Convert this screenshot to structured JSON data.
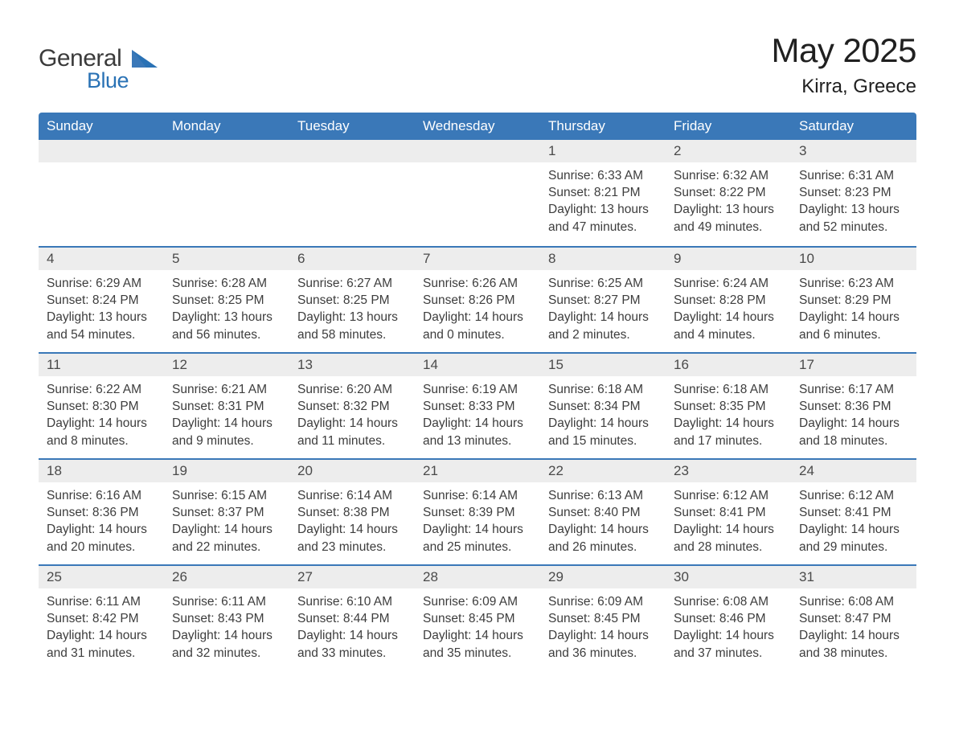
{
  "brand": {
    "line1": "General",
    "line2": "Blue"
  },
  "colors": {
    "header_bg": "#3a78b8",
    "daynum_bg": "#ededed",
    "divider": "#3a78b8",
    "text_dark": "#3d3d3d",
    "brand_gray": "#3b3b3b",
    "brand_blue": "#2a72b5",
    "white": "#ffffff"
  },
  "title": "May 2025",
  "location": "Kirra, Greece",
  "weekdays": [
    "Sunday",
    "Monday",
    "Tuesday",
    "Wednesday",
    "Thursday",
    "Friday",
    "Saturday"
  ],
  "weeks": [
    [
      {
        "blank": true
      },
      {
        "blank": true
      },
      {
        "blank": true
      },
      {
        "blank": true
      },
      {
        "day": "1",
        "sunrise": "6:33 AM",
        "sunset": "8:21 PM",
        "daylight": "13 hours and 47 minutes."
      },
      {
        "day": "2",
        "sunrise": "6:32 AM",
        "sunset": "8:22 PM",
        "daylight": "13 hours and 49 minutes."
      },
      {
        "day": "3",
        "sunrise": "6:31 AM",
        "sunset": "8:23 PM",
        "daylight": "13 hours and 52 minutes."
      }
    ],
    [
      {
        "day": "4",
        "sunrise": "6:29 AM",
        "sunset": "8:24 PM",
        "daylight": "13 hours and 54 minutes."
      },
      {
        "day": "5",
        "sunrise": "6:28 AM",
        "sunset": "8:25 PM",
        "daylight": "13 hours and 56 minutes."
      },
      {
        "day": "6",
        "sunrise": "6:27 AM",
        "sunset": "8:25 PM",
        "daylight": "13 hours and 58 minutes."
      },
      {
        "day": "7",
        "sunrise": "6:26 AM",
        "sunset": "8:26 PM",
        "daylight": "14 hours and 0 minutes."
      },
      {
        "day": "8",
        "sunrise": "6:25 AM",
        "sunset": "8:27 PM",
        "daylight": "14 hours and 2 minutes."
      },
      {
        "day": "9",
        "sunrise": "6:24 AM",
        "sunset": "8:28 PM",
        "daylight": "14 hours and 4 minutes."
      },
      {
        "day": "10",
        "sunrise": "6:23 AM",
        "sunset": "8:29 PM",
        "daylight": "14 hours and 6 minutes."
      }
    ],
    [
      {
        "day": "11",
        "sunrise": "6:22 AM",
        "sunset": "8:30 PM",
        "daylight": "14 hours and 8 minutes."
      },
      {
        "day": "12",
        "sunrise": "6:21 AM",
        "sunset": "8:31 PM",
        "daylight": "14 hours and 9 minutes."
      },
      {
        "day": "13",
        "sunrise": "6:20 AM",
        "sunset": "8:32 PM",
        "daylight": "14 hours and 11 minutes."
      },
      {
        "day": "14",
        "sunrise": "6:19 AM",
        "sunset": "8:33 PM",
        "daylight": "14 hours and 13 minutes."
      },
      {
        "day": "15",
        "sunrise": "6:18 AM",
        "sunset": "8:34 PM",
        "daylight": "14 hours and 15 minutes."
      },
      {
        "day": "16",
        "sunrise": "6:18 AM",
        "sunset": "8:35 PM",
        "daylight": "14 hours and 17 minutes."
      },
      {
        "day": "17",
        "sunrise": "6:17 AM",
        "sunset": "8:36 PM",
        "daylight": "14 hours and 18 minutes."
      }
    ],
    [
      {
        "day": "18",
        "sunrise": "6:16 AM",
        "sunset": "8:36 PM",
        "daylight": "14 hours and 20 minutes."
      },
      {
        "day": "19",
        "sunrise": "6:15 AM",
        "sunset": "8:37 PM",
        "daylight": "14 hours and 22 minutes."
      },
      {
        "day": "20",
        "sunrise": "6:14 AM",
        "sunset": "8:38 PM",
        "daylight": "14 hours and 23 minutes."
      },
      {
        "day": "21",
        "sunrise": "6:14 AM",
        "sunset": "8:39 PM",
        "daylight": "14 hours and 25 minutes."
      },
      {
        "day": "22",
        "sunrise": "6:13 AM",
        "sunset": "8:40 PM",
        "daylight": "14 hours and 26 minutes."
      },
      {
        "day": "23",
        "sunrise": "6:12 AM",
        "sunset": "8:41 PM",
        "daylight": "14 hours and 28 minutes."
      },
      {
        "day": "24",
        "sunrise": "6:12 AM",
        "sunset": "8:41 PM",
        "daylight": "14 hours and 29 minutes."
      }
    ],
    [
      {
        "day": "25",
        "sunrise": "6:11 AM",
        "sunset": "8:42 PM",
        "daylight": "14 hours and 31 minutes."
      },
      {
        "day": "26",
        "sunrise": "6:11 AM",
        "sunset": "8:43 PM",
        "daylight": "14 hours and 32 minutes."
      },
      {
        "day": "27",
        "sunrise": "6:10 AM",
        "sunset": "8:44 PM",
        "daylight": "14 hours and 33 minutes."
      },
      {
        "day": "28",
        "sunrise": "6:09 AM",
        "sunset": "8:45 PM",
        "daylight": "14 hours and 35 minutes."
      },
      {
        "day": "29",
        "sunrise": "6:09 AM",
        "sunset": "8:45 PM",
        "daylight": "14 hours and 36 minutes."
      },
      {
        "day": "30",
        "sunrise": "6:08 AM",
        "sunset": "8:46 PM",
        "daylight": "14 hours and 37 minutes."
      },
      {
        "day": "31",
        "sunrise": "6:08 AM",
        "sunset": "8:47 PM",
        "daylight": "14 hours and 38 minutes."
      }
    ]
  ],
  "labels": {
    "sunrise": "Sunrise: ",
    "sunset": "Sunset: ",
    "daylight": "Daylight: "
  }
}
